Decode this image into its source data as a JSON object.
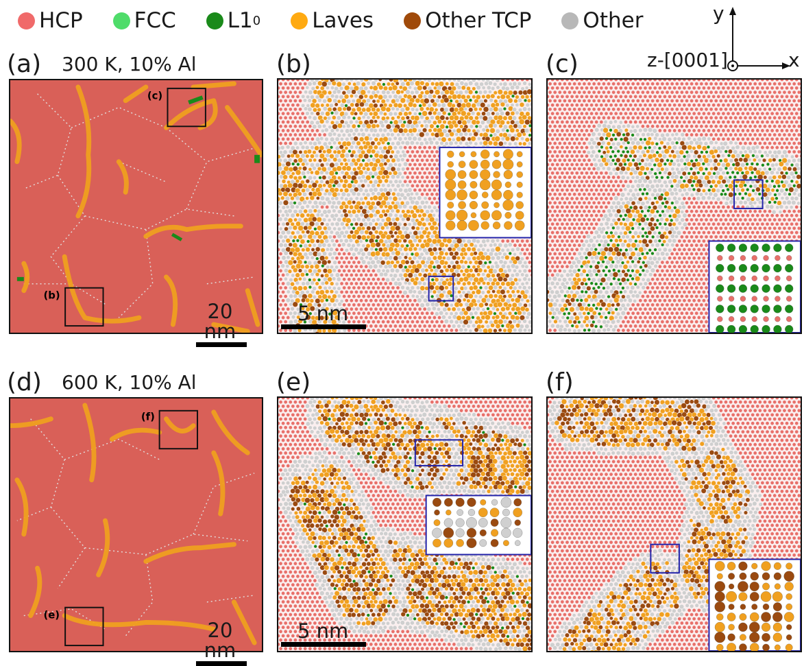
{
  "legend": [
    {
      "label": "HCP",
      "color": "#f06a6a"
    },
    {
      "label": "FCC",
      "color": "#4fdc6a"
    },
    {
      "label": "L1",
      "sub": "0",
      "color": "#1a8a1a"
    },
    {
      "label": "Laves",
      "color": "#ffaa11"
    },
    {
      "label": "Other TCP",
      "color": "#a04a0a"
    },
    {
      "label": "Other",
      "color": "#b8b8b8"
    }
  ],
  "axes": {
    "y": "y",
    "x": "x",
    "z": "z-[0001]"
  },
  "panels": {
    "a": {
      "tag": "(a)",
      "caption": "300 K, 10% Al",
      "scale": "20 nm",
      "insets": [
        {
          "tag": "(c)"
        },
        {
          "tag": "(b)"
        }
      ]
    },
    "b": {
      "tag": "(b)",
      "scale": "5 nm"
    },
    "c": {
      "tag": "(c)"
    },
    "d": {
      "tag": "(d)",
      "caption": "600 K, 10% Al",
      "scale": "20 nm",
      "insets": [
        {
          "tag": "(f)"
        },
        {
          "tag": "(e)"
        }
      ]
    },
    "e": {
      "tag": "(e)",
      "scale": "5 nm"
    },
    "f": {
      "tag": "(f)"
    }
  },
  "colors": {
    "hcp": "#d96058",
    "hcp_atom": "#e8706a",
    "laves": "#f0a020",
    "tcp": "#9a4a10",
    "other": "#cfcfcf",
    "fcc": "#4fdc6a",
    "l10": "#1a8a1a",
    "box": "#2222aa"
  }
}
